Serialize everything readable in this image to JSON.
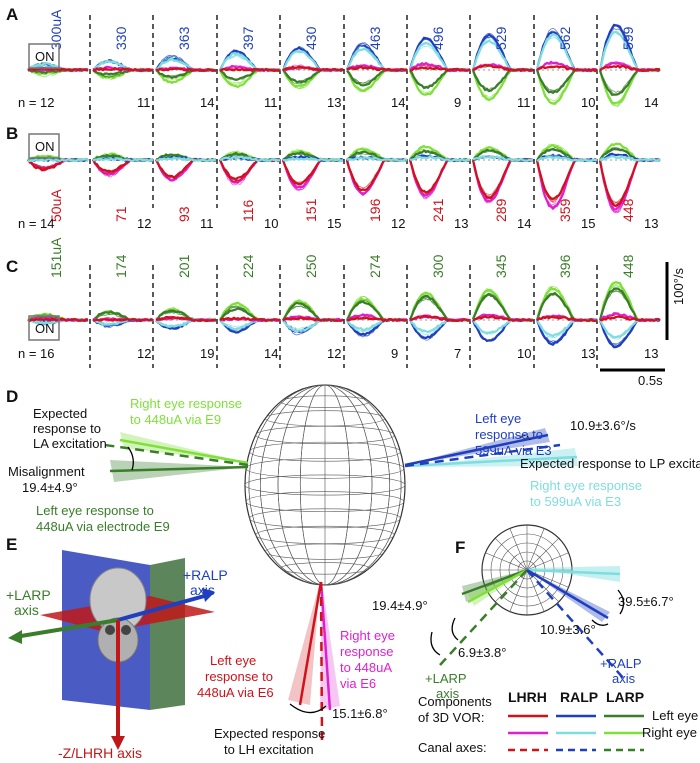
{
  "panels": {
    "A": {
      "letter": "A",
      "on_label": "ON",
      "n_prefix": "n = 12",
      "currents": [
        "300uA",
        "330",
        "363",
        "397",
        "430",
        "463",
        "496",
        "529",
        "562",
        "599"
      ],
      "counts": [
        "",
        "11",
        "14",
        "11",
        "13",
        "14",
        "9",
        "11",
        "10",
        "14"
      ],
      "current_color": "#1f3fbf"
    },
    "B": {
      "letter": "B",
      "on_label": "ON",
      "n_prefix": "n = 14",
      "currents": [
        "50uA",
        "71",
        "93",
        "116",
        "151",
        "196",
        "241",
        "289",
        "359",
        "448"
      ],
      "counts": [
        "",
        "12",
        "11",
        "10",
        "15",
        "12",
        "13",
        "14",
        "15",
        "13"
      ],
      "current_color": "#d0121b"
    },
    "C": {
      "letter": "C",
      "on_label": "ON",
      "n_prefix": "n = 16",
      "currents": [
        "151uA",
        "174",
        "201",
        "224",
        "250",
        "274",
        "300",
        "345",
        "396",
        "448"
      ],
      "counts": [
        "",
        "12",
        "19",
        "14",
        "12",
        "9",
        "7",
        "10",
        "13",
        "13"
      ],
      "current_color": "#3a7d2a"
    },
    "scale_vel": "100°/s",
    "scale_time": "0.5s"
  },
  "panel_D": {
    "letter": "D",
    "la_expected": [
      "Expected",
      "response to",
      "LA excitation"
    ],
    "right_448_e9": [
      "Right eye response",
      "to 448uA via E9"
    ],
    "misalignment": [
      "Misalignment",
      "19.4±4.9°"
    ],
    "left_448_e9": [
      "Left eye response to",
      "448uA via electrode E9"
    ],
    "left_599_e3": [
      "Left eye",
      "response to",
      "599uA via E3"
    ],
    "angle_lp": "10.9±3.6°/s",
    "lp_expected": "Expected response to LP excitation",
    "right_599_e3": [
      "Right eye response",
      "to 599uA via E3"
    ],
    "left_448_e6": [
      "Left eye",
      "response to",
      "448uA via E6"
    ],
    "right_448_e6": [
      "Right eye",
      "response",
      "to 448uA",
      "via E6"
    ],
    "angle_lh": "15.1±6.8°",
    "lh_expected": [
      "Expected response",
      "to LH excitation"
    ]
  },
  "panel_E": {
    "letter": "E",
    "larp_axis": [
      "+LARP",
      "axis"
    ],
    "ralp_axis": [
      "+RALP",
      "axis"
    ],
    "lhrh_axis": "-Z/LHRH  axis"
  },
  "panel_F": {
    "letter": "F",
    "angle_larp1": "19.4±4.9°",
    "angle_larp2": "6.9±3.8°",
    "larp_axis": [
      "+LARP",
      "axis"
    ],
    "angle_ralp1": "39.5±6.7°",
    "angle_ralp2": "10.9±3.6°",
    "ralp_axis": [
      "+RALP",
      "axis"
    ]
  },
  "legend": {
    "headers": [
      "LHRH",
      "RALP",
      "LARP"
    ],
    "rows": [
      {
        "label": [
          "Components",
          "of 3D VOR:"
        ],
        "colors": [
          "#d0121b",
          "#1f3fbf",
          "#3a7d2a"
        ],
        "extra": "Left eye"
      },
      {
        "label": [],
        "colors": [
          "#e020d0",
          "#7fdde0",
          "#7fe03a"
        ],
        "extra": "Right eye"
      },
      {
        "label": [
          "Canal axes:"
        ],
        "colors": [
          "#d0121b",
          "#1f3fbf",
          "#3a7d2a"
        ],
        "extra": ""
      }
    ]
  },
  "colors": {
    "blue": "#1f3fbf",
    "cyan": "#7fdde0",
    "red": "#d0121b",
    "magenta": "#e020d0",
    "darkgreen": "#3a7d2a",
    "lightgreen": "#7fe03a"
  }
}
